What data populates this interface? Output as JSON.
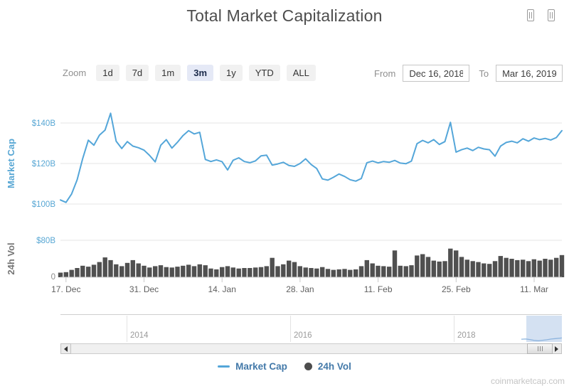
{
  "title": "Total Market Capitalization",
  "toolbar": {
    "zoom_label": "Zoom",
    "buttons": [
      {
        "label": "1d",
        "active": false
      },
      {
        "label": "7d",
        "active": false
      },
      {
        "label": "1m",
        "active": false
      },
      {
        "label": "3m",
        "active": true
      },
      {
        "label": "1y",
        "active": false
      },
      {
        "label": "YTD",
        "active": false
      },
      {
        "label": "ALL",
        "active": false
      }
    ],
    "from_label": "From",
    "from_value": "Dec 16, 2018",
    "to_label": "To",
    "to_value": "Mar 16, 2019"
  },
  "axes": {
    "market_cap": {
      "title": "Market Cap",
      "ticks": [
        "$140B",
        "$120B",
        "$100B"
      ]
    },
    "volume": {
      "title": "24h Vol",
      "ticks": [
        "$80B",
        "0"
      ]
    },
    "x": {
      "ticks": [
        "17. Dec",
        "31. Dec",
        "14. Jan",
        "28. Jan",
        "11. Feb",
        "25. Feb",
        "11. Mar"
      ]
    }
  },
  "navigator": {
    "years": [
      "2014",
      "2016",
      "2018"
    ],
    "selected_range": "Dec 16, 2018 to Mar 16, 2019"
  },
  "legend": {
    "items": [
      {
        "label": "Market Cap",
        "marker": "line"
      },
      {
        "label": "24h Vol",
        "marker": "circle"
      }
    ]
  },
  "watermark": "coinmarketcap.com",
  "colors": {
    "line": "#54a6d9",
    "volume_bar": "#505050",
    "axis_blue": "#58a7d4",
    "axis_gray": "#8a8a8a",
    "selection": "rgba(125,165,215,0.33)",
    "active_button_bg": "#e5e9f6"
  },
  "chart_data": [
    {
      "type": "line",
      "name": "Market Cap",
      "unit": "USD billions",
      "frequency": "daily",
      "x_start": "Dec 16, 2018",
      "x_end": "Mar 16, 2019",
      "ylabel": "Market Cap",
      "ylim": [
        95,
        150
      ],
      "ytick_values": [
        100,
        120,
        140
      ],
      "xticks": [
        "17. Dec",
        "31. Dec",
        "14. Jan",
        "28. Jan",
        "11. Feb",
        "25. Feb",
        "11. Mar"
      ],
      "grid": true,
      "values": [
        102.0,
        100.8,
        105.0,
        112.0,
        122.5,
        131.5,
        129.0,
        134.0,
        136.5,
        144.8,
        131.0,
        127.4,
        130.8,
        128.6,
        127.8,
        126.6,
        124.0,
        120.8,
        129.0,
        131.8,
        127.6,
        130.5,
        133.8,
        136.2,
        134.6,
        135.4,
        122.0,
        121.0,
        121.8,
        120.9,
        116.8,
        121.6,
        122.8,
        121.0,
        120.4,
        121.3,
        123.8,
        124.1,
        119.2,
        119.8,
        120.6,
        119.0,
        118.6,
        120.0,
        122.3,
        119.5,
        117.5,
        112.4,
        111.8,
        113.2,
        114.8,
        113.6,
        112.0,
        111.3,
        112.6,
        120.4,
        121.2,
        120.3,
        121.0,
        120.6,
        121.5,
        120.2,
        119.9,
        121.2,
        129.8,
        131.4,
        130.2,
        131.8,
        129.4,
        130.8,
        140.3,
        125.6,
        126.8,
        127.6,
        126.4,
        128.0,
        127.2,
        126.8,
        123.6,
        128.6,
        130.4,
        131.0,
        130.2,
        132.2,
        131.0,
        132.6,
        131.8,
        132.4,
        131.6,
        132.8,
        136.2
      ]
    },
    {
      "type": "bar",
      "name": "24h Vol",
      "unit": "USD billions",
      "frequency": "daily",
      "x_start": "Dec 16, 2018",
      "x_end": "Mar 16, 2019",
      "ylabel": "24h Vol",
      "ylim": [
        0,
        80
      ],
      "ytick_values": [
        0,
        80
      ],
      "grid": true,
      "values": [
        10,
        11,
        16,
        20,
        25,
        23,
        27,
        33,
        43,
        37,
        28,
        24,
        31,
        37,
        30,
        25,
        21,
        24,
        26,
        22,
        21,
        23,
        25,
        27,
        24,
        28,
        26,
        19,
        17,
        22,
        24,
        21,
        19,
        20,
        20,
        21,
        22,
        24,
        42,
        24,
        28,
        36,
        33,
        24,
        21,
        20,
        19,
        22,
        18,
        16,
        17,
        18,
        16,
        17,
        24,
        37,
        30,
        25,
        24,
        23,
        58,
        25,
        24,
        26,
        47,
        50,
        44,
        36,
        34,
        35,
        62,
        58,
        44,
        38,
        35,
        33,
        30,
        29,
        35,
        46,
        42,
        40,
        37,
        38,
        35,
        39,
        36,
        40,
        38,
        42,
        48
      ]
    }
  ]
}
